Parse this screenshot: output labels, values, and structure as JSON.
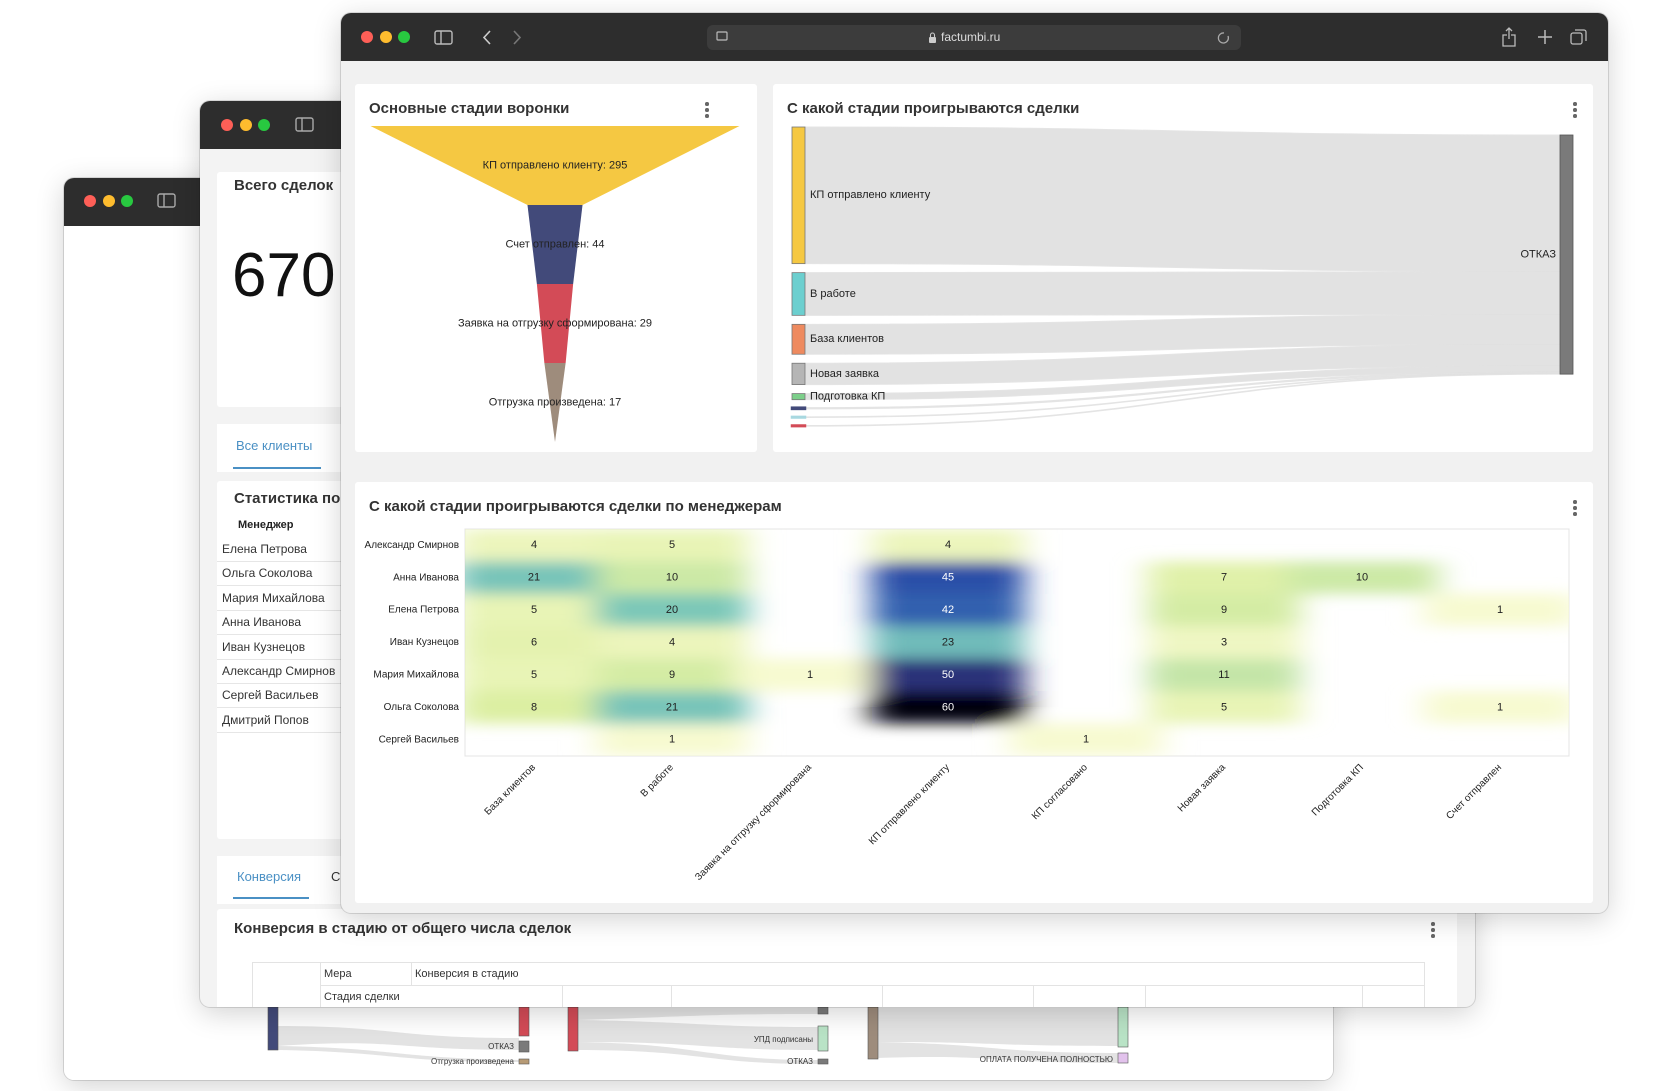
{
  "browser": {
    "url": "factumbi.ru"
  },
  "summary_window": {
    "kpi": {
      "title": "Всего сделок",
      "value": 670
    },
    "tab": "Все клиенты",
    "stats": {
      "title": "Статистика по",
      "column": "Менеджер",
      "rows": [
        "Елена Петрова",
        "Ольга Соколова",
        "Мария Михайлова",
        "Анна Иванова",
        "Иван Кузнецов",
        "Александр Смирнов",
        "Сергей Васильев",
        "Дмитрий Попов"
      ]
    },
    "tabs": [
      "Конверсия",
      "С"
    ],
    "conversion": {
      "title": "Конверсия в стадию от общего числа сделок",
      "measure_label": "Мера",
      "measure": "Конверсия в стадию",
      "stage_label": "Стадия сделки"
    }
  },
  "rear_window": {
    "flows": [
      {
        "labels": [
          "ОТКАЗ",
          "Отгрузка произведена"
        ]
      },
      {
        "labels": [
          "УПД подписаны",
          "ОТКАЗ"
        ]
      },
      {
        "labels": [
          "ОПЛАТА ПОЛУЧЕНА ПОЛНОСТЬЮ"
        ]
      }
    ]
  },
  "funnel": {
    "type": "funnel",
    "title": "Основные стадии воронки",
    "values": [
      295,
      44,
      29,
      17
    ],
    "value_labels": [
      "КП отправлено клиенту: 295",
      "Счет отправлен: 44",
      "Заявка на отгрузку сформирована: 29",
      "Отгрузка произведена: 17"
    ],
    "colors": [
      "#f5c842",
      "#424a7a",
      "#d34b57",
      "#9e8c7c"
    ]
  },
  "sankey": {
    "type": "sankey",
    "title": "С какой стадии проигрываются сделки",
    "categories": [
      "КП отправлено клиенту",
      "В работе",
      "База клиентов",
      "Новая заявка",
      "Подготовка КП",
      null,
      null,
      null
    ],
    "values": [
      224,
      70,
      49,
      35,
      10,
      2,
      1,
      1
    ],
    "colors": [
      "#f5c842",
      "#6ccfcf",
      "#ee8a5f",
      "#b5b5b5",
      "#7ccf8a",
      "#424a7a",
      "#a8d8e0",
      "#d34b57"
    ],
    "target": "ОТКАЗ",
    "target_color": "#7a7a7a"
  },
  "heatmap": {
    "type": "heatmap",
    "title": "С какой стадии проигрываются сделки по менеджерам",
    "rows": [
      "Александр Смирнов",
      "Анна Иванова",
      "Елена Петрова",
      "Иван Кузнецов",
      "Мария Михайлова",
      "Ольга Соколова",
      "Сергей Васильев"
    ],
    "columns": [
      "База клиентов",
      "В работе",
      "Заявка на отгрузку сформирована",
      "КП отправлено клиенту",
      "КП согласовано",
      "Новая заявка",
      "Подготовка КП",
      "Счет отправлен"
    ],
    "values": [
      [
        4,
        5,
        null,
        4,
        null,
        null,
        null,
        null
      ],
      [
        21,
        10,
        null,
        45,
        null,
        7,
        10,
        null
      ],
      [
        5,
        20,
        null,
        42,
        null,
        9,
        null,
        1
      ],
      [
        6,
        4,
        null,
        23,
        null,
        3,
        null,
        null
      ],
      [
        5,
        9,
        1,
        50,
        null,
        11,
        null,
        null
      ],
      [
        8,
        21,
        null,
        60,
        null,
        5,
        null,
        1
      ],
      [
        null,
        1,
        null,
        null,
        1,
        null,
        null,
        null
      ]
    ],
    "color_scale": [
      [
        0,
        "#fbfbd6"
      ],
      [
        8,
        "#dcefa2"
      ],
      [
        20,
        "#7cc8b8"
      ],
      [
        35,
        "#4189c0"
      ],
      [
        45,
        "#2c4fa8"
      ],
      [
        52,
        "#2a2466"
      ],
      [
        60,
        "#050510"
      ]
    ]
  }
}
